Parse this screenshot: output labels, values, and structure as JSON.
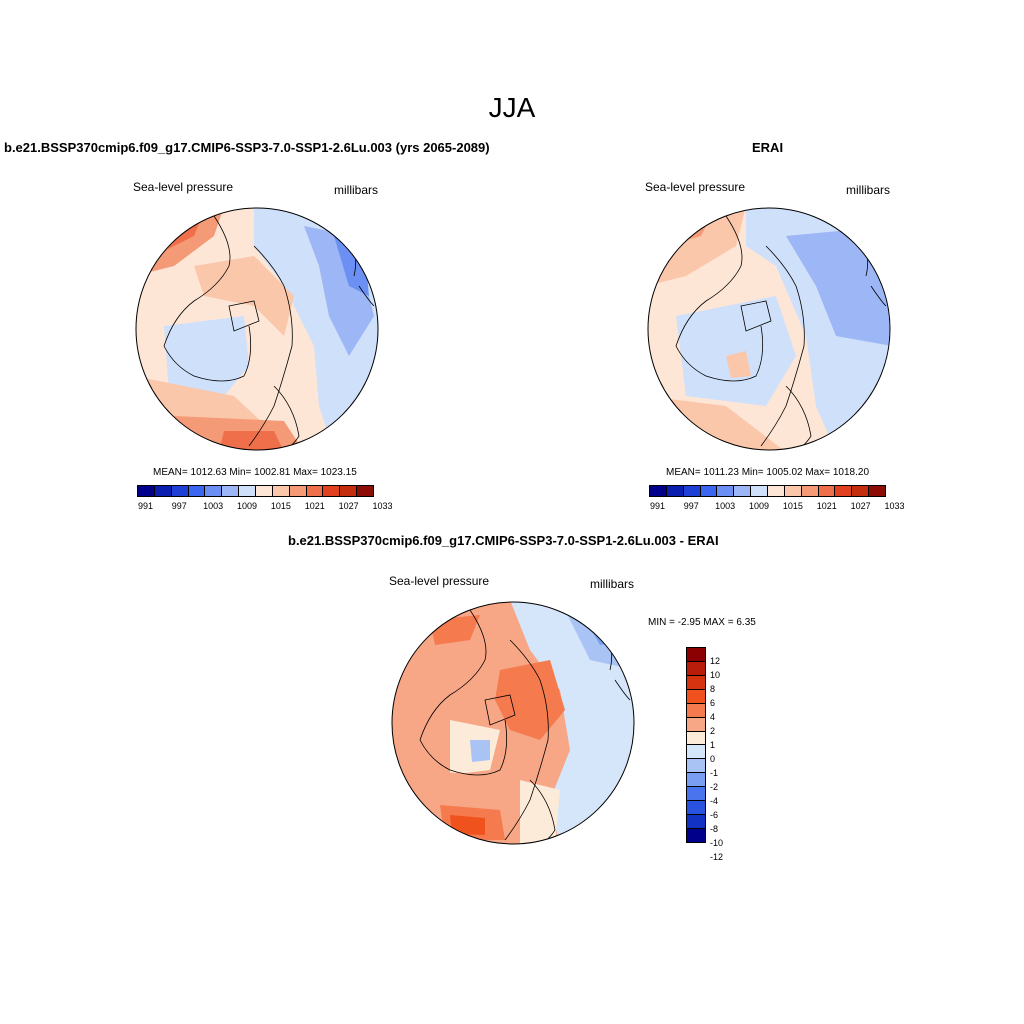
{
  "main_title": "JJA",
  "panels": [
    {
      "title": "b.e21.BSSP370cmip6.f09_g17.CMIP6-SSP3-7.0-SSP1-2.6Lu.003 (yrs 2065-2089)",
      "variable": "Sea-level pressure",
      "units": "millibars",
      "stats": "MEAN= 1012.63  Min= 1002.81  Max= 1023.15"
    },
    {
      "title": "ERAI",
      "variable": "Sea-level pressure",
      "units": "millibars",
      "stats": "MEAN= 1011.23  Min= 1005.02  Max= 1018.20"
    },
    {
      "title": "b.e21.BSSP370cmip6.f09_g17.CMIP6-SSP3-7.0-SSP1-2.6Lu.003 - ERAI",
      "variable": "Sea-level pressure",
      "units": "millibars",
      "stats": "MIN =  -2.95 MAX =   6.35"
    }
  ],
  "colorbar_horizontal": {
    "colors": [
      "#00008b",
      "#0a1fb0",
      "#1e40d6",
      "#3a66f0",
      "#6b8ff2",
      "#9db6f5",
      "#cfe0fa",
      "#fde6d6",
      "#fbc7ab",
      "#f59a76",
      "#ee6f4a",
      "#e2411f",
      "#c52d0f",
      "#8b0d06"
    ],
    "tick_labels": [
      "991",
      "997",
      "1003",
      "1009",
      "1015",
      "1021",
      "1027",
      "1033"
    ]
  },
  "colorbar_vertical": {
    "colors": [
      "#8b0000",
      "#b81c0a",
      "#d63310",
      "#f0521e",
      "#f57a4e",
      "#f7a686",
      "#fdebd9",
      "#d5e6fb",
      "#a9c3f5",
      "#7a9ff2",
      "#4a74ee",
      "#2a52e0",
      "#1232c4",
      "#00008b"
    ],
    "tick_labels": [
      "12",
      "10",
      "8",
      "6",
      "4",
      "2",
      "1",
      "0",
      "-1",
      "-2",
      "-4",
      "-6",
      "-8",
      "-10",
      "-12"
    ]
  }
}
